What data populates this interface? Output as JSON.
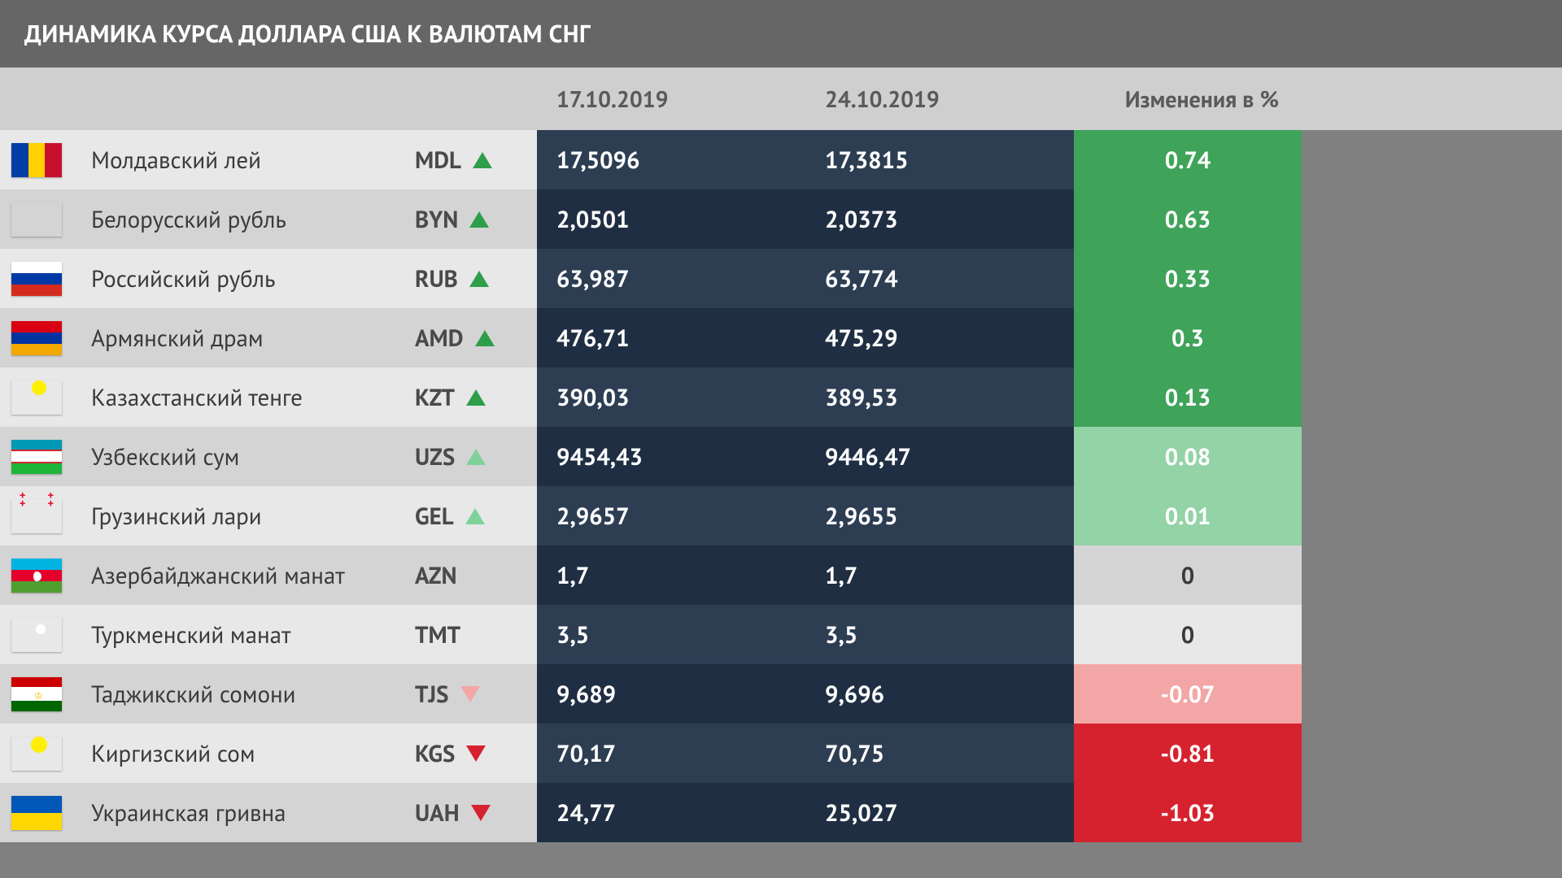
{
  "title": "ДИНАМИКА КУРСА ДОЛЛАРА США К ВАЛЮТАМ СНГ",
  "columns": {
    "date1": "17.10.2019",
    "date2": "24.10.2019",
    "change": "Изменения в %"
  },
  "colors": {
    "triangle_up_strong": "#2e9e4a",
    "triangle_up_light": "#7fd29a",
    "triangle_down_strong": "#d6222f",
    "triangle_down_light": "#f3a6a6",
    "change_pos_strong": "#3fa35a",
    "change_pos_light": "#93d3a6",
    "change_neg_strong": "#d6222f",
    "change_neg_light": "#f3a6a6",
    "change_zero_odd": "#e8e8e8",
    "change_zero_even": "#d4d4d4",
    "zero_text": "#3a3a3a"
  },
  "rows": [
    {
      "name": "Молдавский лей",
      "code": "MDL",
      "v1": "17,5096",
      "v2": "17,3815",
      "change": "0.74",
      "dir": "up",
      "strength": "strong",
      "flag": "md"
    },
    {
      "name": "Белорусский рубль",
      "code": "BYN",
      "v1": "2,0501",
      "v2": "2,0373",
      "change": "0.63",
      "dir": "up",
      "strength": "strong",
      "flag": "by"
    },
    {
      "name": "Российский рубль",
      "code": "RUB",
      "v1": "63,987",
      "v2": "63,774",
      "change": "0.33",
      "dir": "up",
      "strength": "strong",
      "flag": "ru"
    },
    {
      "name": "Армянский драм",
      "code": "AMD",
      "v1": "476,71",
      "v2": "475,29",
      "change": "0.3",
      "dir": "up",
      "strength": "strong",
      "flag": "am"
    },
    {
      "name": "Казахстанский тенге",
      "code": "KZT",
      "v1": "390,03",
      "v2": "389,53",
      "change": "0.13",
      "dir": "up",
      "strength": "strong",
      "flag": "kz"
    },
    {
      "name": "Узбекский сум",
      "code": "UZS",
      "v1": "9454,43",
      "v2": "9446,47",
      "change": "0.08",
      "dir": "up",
      "strength": "light",
      "flag": "uz"
    },
    {
      "name": "Грузинский лари",
      "code": "GEL",
      "v1": "2,9657",
      "v2": "2,9655",
      "change": "0.01",
      "dir": "up",
      "strength": "light",
      "flag": "ge"
    },
    {
      "name": "Азербайджанский манат",
      "code": "AZN",
      "v1": "1,7",
      "v2": "1,7",
      "change": "0",
      "dir": "none",
      "strength": "",
      "flag": "az"
    },
    {
      "name": "Туркменский манат",
      "code": "TMT",
      "v1": "3,5",
      "v2": "3,5",
      "change": "0",
      "dir": "none",
      "strength": "",
      "flag": "tm"
    },
    {
      "name": "Таджикский сомони",
      "code": "TJS",
      "v1": "9,689",
      "v2": "9,696",
      "change": "-0.07",
      "dir": "down",
      "strength": "light",
      "flag": "tj"
    },
    {
      "name": "Киргизский сом",
      "code": "KGS",
      "v1": "70,17",
      "v2": "70,75",
      "change": "-0.81",
      "dir": "down",
      "strength": "strong",
      "flag": "kg"
    },
    {
      "name": "Украинская гривна",
      "code": "UAH",
      "v1": "24,77",
      "v2": "25,027",
      "change": "-1.03",
      "dir": "down",
      "strength": "strong",
      "flag": "ua"
    }
  ]
}
